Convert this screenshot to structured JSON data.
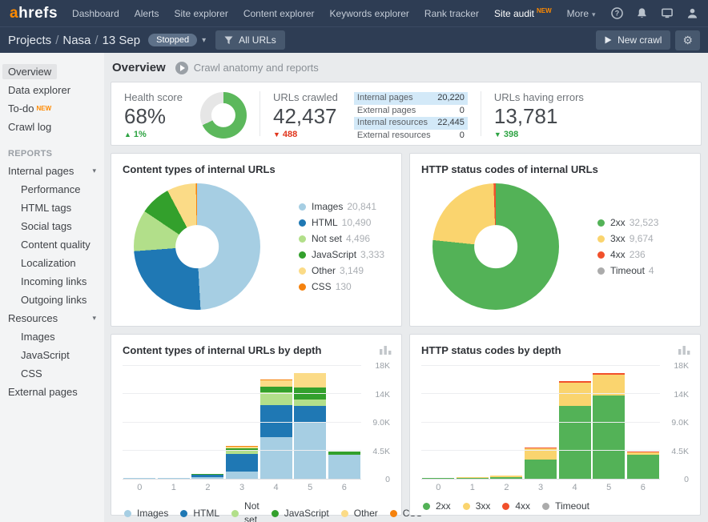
{
  "topbar": {
    "logo_a": "a",
    "logo_rest": "hrefs",
    "items": [
      {
        "label": "Dashboard"
      },
      {
        "label": "Alerts"
      },
      {
        "label": "Site explorer"
      },
      {
        "label": "Content explorer"
      },
      {
        "label": "Keywords explorer"
      },
      {
        "label": "Rank tracker"
      },
      {
        "label": "Site audit",
        "badge": "NEW",
        "active": true
      },
      {
        "label": "More",
        "caret": true
      }
    ]
  },
  "subbar": {
    "breadcrumb": [
      "Projects",
      "Nasa",
      "13 Sep"
    ],
    "status_badge": "Stopped",
    "filter_button": "All URLs",
    "new_crawl_button": "New crawl"
  },
  "sidebar": {
    "items": [
      {
        "label": "Overview",
        "selected": true
      },
      {
        "label": "Data explorer"
      },
      {
        "label": "To-do",
        "badge": "NEW"
      },
      {
        "label": "Crawl log"
      },
      {
        "label": "REPORTS",
        "section": true
      },
      {
        "label": "Internal pages",
        "caret": true
      },
      {
        "label": "Performance",
        "indent": true
      },
      {
        "label": "HTML tags",
        "indent": true
      },
      {
        "label": "Social tags",
        "indent": true
      },
      {
        "label": "Content quality",
        "indent": true
      },
      {
        "label": "Localization",
        "indent": true
      },
      {
        "label": "Incoming links",
        "indent": true
      },
      {
        "label": "Outgoing links",
        "indent": true
      },
      {
        "label": "Resources",
        "caret": true
      },
      {
        "label": "Images",
        "indent": true
      },
      {
        "label": "JavaScript",
        "indent": true
      },
      {
        "label": "CSS",
        "indent": true
      },
      {
        "label": "External pages"
      }
    ]
  },
  "page": {
    "title": "Overview",
    "subtitle_link": "Crawl anatomy and reports"
  },
  "stats": {
    "health": {
      "label": "Health score",
      "value": "68%",
      "delta": "1%",
      "delta_dir": "up"
    },
    "crawled": {
      "label": "URLs crawled",
      "value": "42,437",
      "delta": "488",
      "delta_dir": "down",
      "rows": [
        {
          "label": "Internal pages",
          "value": "20,220",
          "highlight": true
        },
        {
          "label": "External pages",
          "value": "0",
          "highlight": false
        },
        {
          "label": "Internal resources",
          "value": "22,445",
          "highlight": true
        },
        {
          "label": "External resources",
          "value": "0",
          "highlight": false
        }
      ]
    },
    "errors": {
      "label": "URLs having errors",
      "value": "13,781",
      "delta": "398",
      "delta_dir": "down"
    }
  },
  "colors": {
    "accent_orange": "#FF8A00",
    "health_green": "#5CB85C",
    "health_track": "#E6E6E6",
    "delta_up_green": "#2DA342",
    "delta_down_red": "#E0341B",
    "row_highlight": "#D3E9F8"
  },
  "chart_data": [
    {
      "type": "donut",
      "title": "Health score",
      "hole": 0.52,
      "names": [
        "score",
        "remaining"
      ],
      "values": [
        68,
        32
      ],
      "colors": [
        "#5CB85C",
        "#E6E6E6"
      ],
      "legend": false
    },
    {
      "type": "pie",
      "title": "Content types of internal URLs",
      "hole": 0.34,
      "names": [
        "Images",
        "HTML",
        "Not set",
        "JavaScript",
        "Other",
        "CSS"
      ],
      "values": [
        20841,
        10490,
        4496,
        3333,
        3149,
        130
      ],
      "display_values": [
        "20,841",
        "10,490",
        "4,496",
        "3,333",
        "3,149",
        "130"
      ],
      "colors": [
        "#A6CEE3",
        "#1F78B4",
        "#B2DF8A",
        "#33A02C",
        "#FBDB87",
        "#F5820D"
      ],
      "legend": true
    },
    {
      "type": "pie",
      "title": "HTTP status codes of internal URLs",
      "hole": 0.34,
      "names": [
        "2xx",
        "3xx",
        "4xx",
        "Timeout"
      ],
      "values": [
        32523,
        9674,
        236,
        4
      ],
      "display_values": [
        "32,523",
        "9,674",
        "236",
        "4"
      ],
      "colors": [
        "#53B257",
        "#FAD46E",
        "#F1502B",
        "#ABABAB"
      ],
      "legend": true
    },
    {
      "type": "stacked-bar",
      "title": "Content types of internal URLs by depth",
      "categories": [
        "0",
        "1",
        "2",
        "3",
        "4",
        "5",
        "6"
      ],
      "ymax": 18000,
      "yticks": [
        "0",
        "4.5K",
        "9.0K",
        "14K",
        "18K"
      ],
      "grid": true,
      "legend_position": "bottom",
      "series": [
        {
          "name": "Images",
          "color": "#A6CEE3",
          "values": [
            30,
            130,
            250,
            1130,
            6600,
            9100,
            3800
          ]
        },
        {
          "name": "HTML",
          "color": "#1F78B4",
          "values": [
            0,
            0,
            350,
            2770,
            5100,
            2600,
            0
          ]
        },
        {
          "name": "Not set",
          "color": "#B2DF8A",
          "values": [
            0,
            0,
            0,
            630,
            2000,
            1000,
            0
          ]
        },
        {
          "name": "JavaScript",
          "color": "#33A02C",
          "values": [
            0,
            0,
            100,
            250,
            900,
            1900,
            500
          ]
        },
        {
          "name": "Other",
          "color": "#FBDB87",
          "values": [
            0,
            0,
            0,
            250,
            1000,
            2300,
            0
          ]
        },
        {
          "name": "CSS",
          "color": "#F5820D",
          "values": [
            0,
            0,
            0,
            120,
            50,
            0,
            0
          ]
        }
      ]
    },
    {
      "type": "stacked-bar",
      "title": "HTTP status codes by depth",
      "categories": [
        "0",
        "1",
        "2",
        "3",
        "4",
        "5",
        "6"
      ],
      "ymax": 18000,
      "yticks": [
        "0",
        "4.5K",
        "9.0K",
        "14K",
        "18K"
      ],
      "grid": true,
      "legend_position": "bottom",
      "series": [
        {
          "name": "2xx",
          "color": "#53B257",
          "values": [
            20,
            100,
            300,
            3000,
            11600,
            13300,
            3800
          ]
        },
        {
          "name": "3xx",
          "color": "#FAD46E",
          "values": [
            0,
            20,
            300,
            1800,
            3700,
            3300,
            400
          ]
        },
        {
          "name": "4xx",
          "color": "#F1502B",
          "values": [
            0,
            0,
            0,
            60,
            200,
            200,
            30
          ]
        },
        {
          "name": "Timeout",
          "color": "#ABABAB",
          "values": [
            0,
            0,
            0,
            0,
            0,
            0,
            0
          ]
        }
      ]
    }
  ]
}
